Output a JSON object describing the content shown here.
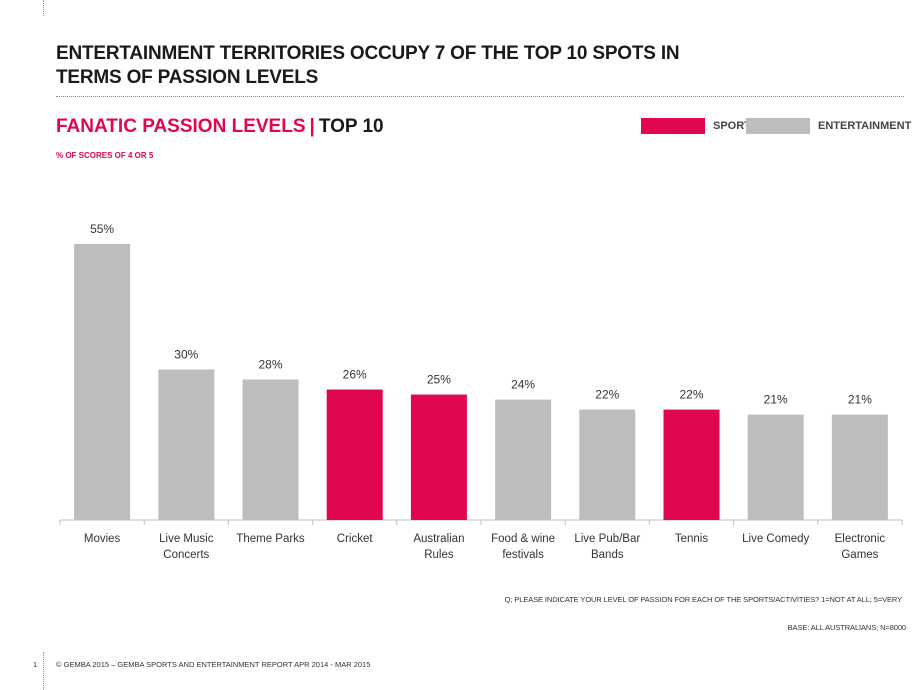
{
  "title_lines": [
    "ENTERTAINMENT TERRITORIES OCCUPY 7 OF THE TOP 10 SPOTS IN",
    "TERMS OF PASSION LEVELS"
  ],
  "subtitle": {
    "main": "FANATIC PASSION LEVELS",
    "separator": "|",
    "suffix": "TOP 10"
  },
  "note": "% OF SCORES OF 4 OR 5",
  "legend": [
    {
      "label": "SPORT",
      "color": "#e0074f"
    },
    {
      "label": "ENTERTAINMENT",
      "color": "#bdbdbd"
    }
  ],
  "source_question": "Q; PLEASE INDICATE YOUR LEVEL OF PASSION FOR EACH OF THE SPORTS/ACTIVITIES?  1=NOT AT ALL; 5=VERY",
  "base": "BASE: ALL AUSTRALIANS;  N=8000",
  "page_number": "1",
  "footer": "© GEMBA 2015 – GEMBA SPORTS AND ENTERTAINMENT  REPORT APR 2014 - MAR 2015",
  "chart_data": {
    "type": "bar",
    "title": "FANATIC PASSION LEVELS | TOP 10",
    "categories": [
      "Movies",
      "Live Music Concerts",
      "Theme Parks",
      "Cricket",
      "Australian Rules",
      "Food & wine festivals",
      "Live Pub/Bar Bands",
      "Tennis",
      "Live Comedy",
      "Electronic Games"
    ],
    "category_lines": [
      [
        "Movies"
      ],
      [
        "Live Music",
        "Concerts"
      ],
      [
        "Theme Parks"
      ],
      [
        "Cricket"
      ],
      [
        "Australian",
        "Rules"
      ],
      [
        "Food & wine",
        "festivals"
      ],
      [
        "Live Pub/Bar",
        "Bands"
      ],
      [
        "Tennis"
      ],
      [
        "Live Comedy"
      ],
      [
        "Electronic",
        "Games"
      ]
    ],
    "values": [
      55,
      30,
      28,
      26,
      25,
      24,
      22,
      22,
      21,
      21
    ],
    "value_labels": [
      "55%",
      "30%",
      "28%",
      "26%",
      "25%",
      "24%",
      "22%",
      "22%",
      "21%",
      "21%"
    ],
    "types": [
      "ENTERTAINMENT",
      "ENTERTAINMENT",
      "ENTERTAINMENT",
      "SPORT",
      "SPORT",
      "ENTERTAINMENT",
      "ENTERTAINMENT",
      "SPORT",
      "ENTERTAINMENT",
      "ENTERTAINMENT"
    ],
    "colors": {
      "SPORT": "#e0074f",
      "ENTERTAINMENT": "#bdbdbd"
    },
    "ylim": [
      0,
      55
    ],
    "unit": "%",
    "grid": false,
    "legend_position": "top-right"
  }
}
